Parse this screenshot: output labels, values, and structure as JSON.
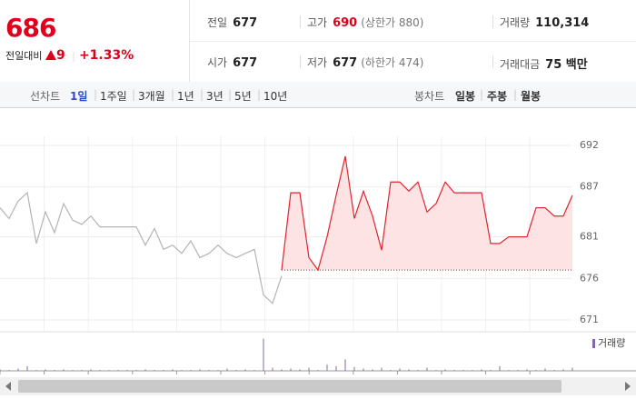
{
  "quote": {
    "price": "686",
    "change_label": "전일대비",
    "change": "9",
    "change_rate": "+1.33%"
  },
  "stats": [
    {
      "label": "전일",
      "value": "677"
    },
    {
      "label": "고가",
      "value": "690",
      "note": "(상한가 880)"
    },
    {
      "label": "거래량",
      "value": "110,314"
    },
    {
      "label": "시가",
      "value": "677"
    },
    {
      "label": "저가",
      "value": "677",
      "note": "(하한가 474)"
    },
    {
      "label": "거래대금",
      "value": "75 백만"
    }
  ],
  "tabs": {
    "line_label": "선차트",
    "line": [
      "1일",
      "1주일",
      "3개월",
      "1년",
      "3년",
      "5년",
      "10년"
    ],
    "selected": 0,
    "candle_label": "봉차트",
    "candle": [
      "일봉",
      "주봉",
      "월봉"
    ]
  },
  "chart_data": [
    {
      "type": "line",
      "ylim": [
        671,
        692
      ],
      "yticks": [
        692,
        687,
        681,
        676,
        671
      ],
      "grid": true,
      "baseline": 677,
      "series": [
        {
          "color": "#b4b4b4",
          "values": [
            684.5,
            683.2,
            685.3,
            686.3,
            680.2,
            684.0,
            681.5,
            685.0,
            683.0,
            682.5,
            683.5,
            682.2,
            682.2,
            682.2,
            682.2,
            682.2,
            680.0,
            682.0,
            679.5,
            680.0,
            679.0,
            680.5,
            678.5,
            679.0,
            680.0,
            679.0,
            678.5,
            679.0,
            679.5,
            674.0,
            673.0,
            676.3,
            null,
            null,
            null,
            null,
            null,
            null,
            null,
            null,
            null,
            null,
            null,
            null,
            null,
            null,
            null,
            null,
            null,
            null,
            null,
            null,
            null,
            null,
            null,
            null,
            null,
            null,
            null,
            null,
            null,
            null,
            null,
            null
          ]
        },
        {
          "color": "#e0242f",
          "fill": "#fde3e4",
          "values": [
            null,
            null,
            null,
            null,
            null,
            null,
            null,
            null,
            null,
            null,
            null,
            null,
            null,
            null,
            null,
            null,
            null,
            null,
            null,
            null,
            null,
            null,
            null,
            null,
            null,
            null,
            null,
            null,
            null,
            null,
            null,
            677.0,
            686.3,
            686.3,
            678.5,
            677.0,
            681.0,
            686.0,
            690.7,
            683.2,
            686.5,
            683.5,
            679.4,
            687.6,
            687.6,
            686.5,
            687.6,
            684.0,
            685.0,
            687.6,
            686.3,
            686.3,
            686.3,
            686.3,
            680.2,
            680.2,
            681.0,
            681.0,
            681.0,
            684.5,
            684.5,
            683.5,
            683.5,
            686.0
          ]
        }
      ]
    },
    {
      "type": "bar",
      "ylim": [
        0,
        45
      ],
      "series": [
        {
          "name": "거래량",
          "color": "#7f6aa8",
          "values": [
            2,
            1,
            3,
            6,
            1,
            2,
            1,
            2,
            1,
            1,
            2,
            1,
            1,
            1,
            1,
            1,
            2,
            1,
            1,
            2,
            1,
            1,
            2,
            1,
            1,
            3,
            1,
            2,
            1,
            42,
            4,
            2,
            3,
            2,
            4,
            1,
            8,
            6,
            15,
            5,
            3,
            2,
            4,
            1,
            3,
            2,
            1,
            4,
            1,
            2,
            1,
            1,
            1,
            2,
            1,
            6,
            1,
            1,
            2,
            1,
            3,
            1,
            2,
            4
          ]
        }
      ]
    }
  ]
}
